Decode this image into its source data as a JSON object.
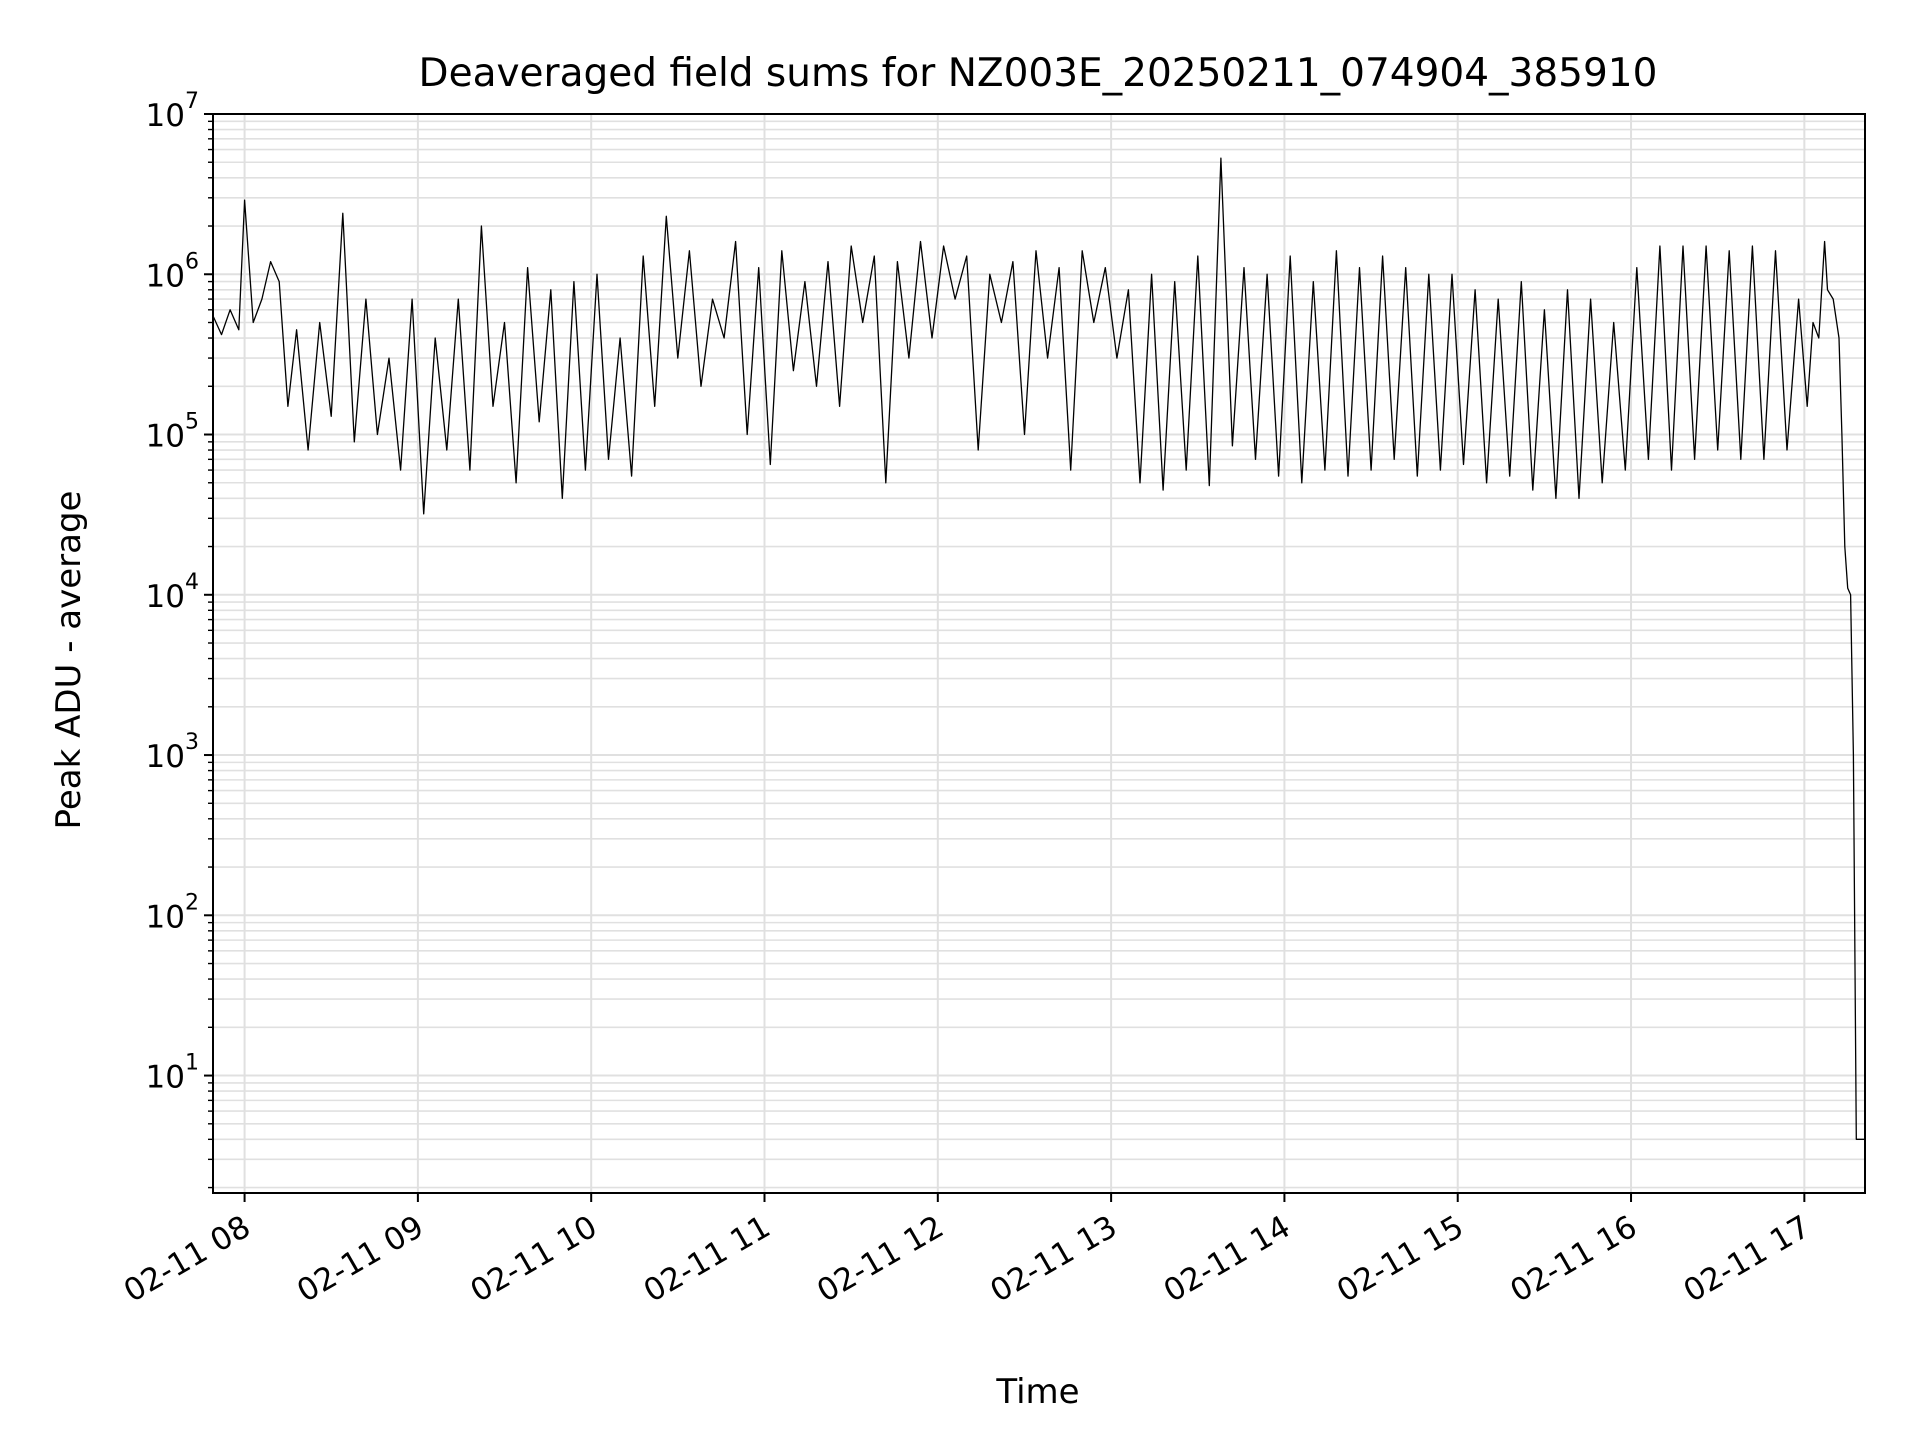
{
  "chart_data": {
    "type": "line",
    "title": "Deaveraged field sums for NZ003E_20250211_074904_385910",
    "xlabel": "Time",
    "ylabel": "Peak ADU - average",
    "yscale": "log",
    "ylim": [
      1.85,
      10000000
    ],
    "xlim": [
      "2025-02-11T07:49:04",
      "2025-02-11T17:21:00"
    ],
    "x_ticks": [
      {
        "label": "02-11 08",
        "t": "2025-02-11T08:00:00"
      },
      {
        "label": "02-11 09",
        "t": "2025-02-11T09:00:00"
      },
      {
        "label": "02-11 10",
        "t": "2025-02-11T10:00:00"
      },
      {
        "label": "02-11 11",
        "t": "2025-02-11T11:00:00"
      },
      {
        "label": "02-11 12",
        "t": "2025-02-11T12:00:00"
      },
      {
        "label": "02-11 13",
        "t": "2025-02-11T13:00:00"
      },
      {
        "label": "02-11 14",
        "t": "2025-02-11T14:00:00"
      },
      {
        "label": "02-11 15",
        "t": "2025-02-11T15:00:00"
      },
      {
        "label": "02-11 16",
        "t": "2025-02-11T16:00:00"
      },
      {
        "label": "02-11 17",
        "t": "2025-02-11T17:00:00"
      }
    ],
    "y_ticks": [
      {
        "base": "10",
        "exp": "1",
        "value": 10
      },
      {
        "base": "10",
        "exp": "2",
        "value": 100
      },
      {
        "base": "10",
        "exp": "3",
        "value": 1000
      },
      {
        "base": "10",
        "exp": "4",
        "value": 10000
      },
      {
        "base": "10",
        "exp": "5",
        "value": 100000
      },
      {
        "base": "10",
        "exp": "6",
        "value": 1000000
      },
      {
        "base": "10",
        "exp": "7",
        "value": 10000000
      }
    ],
    "grid": true,
    "line_color": "#000000",
    "grid_color": "#e0e0e0",
    "series": [
      {
        "x": [
          "2025-02-11T07:49:04",
          "2025-02-11T07:52:00",
          "2025-02-11T07:55:00",
          "2025-02-11T07:58:00",
          "2025-02-11T08:00:00",
          "2025-02-11T08:03:00",
          "2025-02-11T08:06:00",
          "2025-02-11T08:09:00",
          "2025-02-11T08:12:00",
          "2025-02-11T08:15:00",
          "2025-02-11T08:18:00",
          "2025-02-11T08:22:00",
          "2025-02-11T08:26:00",
          "2025-02-11T08:30:00",
          "2025-02-11T08:34:00",
          "2025-02-11T08:38:00",
          "2025-02-11T08:42:00",
          "2025-02-11T08:46:00",
          "2025-02-11T08:50:00",
          "2025-02-11T08:54:00",
          "2025-02-11T08:58:00",
          "2025-02-11T09:02:00",
          "2025-02-11T09:06:00",
          "2025-02-11T09:10:00",
          "2025-02-11T09:14:00",
          "2025-02-11T09:18:00",
          "2025-02-11T09:22:00",
          "2025-02-11T09:26:00",
          "2025-02-11T09:30:00",
          "2025-02-11T09:34:00",
          "2025-02-11T09:38:00",
          "2025-02-11T09:42:00",
          "2025-02-11T09:46:00",
          "2025-02-11T09:50:00",
          "2025-02-11T09:54:00",
          "2025-02-11T09:58:00",
          "2025-02-11T10:02:00",
          "2025-02-11T10:06:00",
          "2025-02-11T10:10:00",
          "2025-02-11T10:14:00",
          "2025-02-11T10:18:00",
          "2025-02-11T10:22:00",
          "2025-02-11T10:26:00",
          "2025-02-11T10:30:00",
          "2025-02-11T10:34:00",
          "2025-02-11T10:38:00",
          "2025-02-11T10:42:00",
          "2025-02-11T10:46:00",
          "2025-02-11T10:50:00",
          "2025-02-11T10:54:00",
          "2025-02-11T10:58:00",
          "2025-02-11T11:02:00",
          "2025-02-11T11:06:00",
          "2025-02-11T11:10:00",
          "2025-02-11T11:14:00",
          "2025-02-11T11:18:00",
          "2025-02-11T11:22:00",
          "2025-02-11T11:26:00",
          "2025-02-11T11:30:00",
          "2025-02-11T11:34:00",
          "2025-02-11T11:38:00",
          "2025-02-11T11:42:00",
          "2025-02-11T11:46:00",
          "2025-02-11T11:50:00",
          "2025-02-11T11:54:00",
          "2025-02-11T11:58:00",
          "2025-02-11T12:02:00",
          "2025-02-11T12:06:00",
          "2025-02-11T12:10:00",
          "2025-02-11T12:14:00",
          "2025-02-11T12:18:00",
          "2025-02-11T12:22:00",
          "2025-02-11T12:26:00",
          "2025-02-11T12:30:00",
          "2025-02-11T12:34:00",
          "2025-02-11T12:38:00",
          "2025-02-11T12:42:00",
          "2025-02-11T12:46:00",
          "2025-02-11T12:50:00",
          "2025-02-11T12:54:00",
          "2025-02-11T12:58:00",
          "2025-02-11T13:02:00",
          "2025-02-11T13:06:00",
          "2025-02-11T13:10:00",
          "2025-02-11T13:14:00",
          "2025-02-11T13:18:00",
          "2025-02-11T13:22:00",
          "2025-02-11T13:26:00",
          "2025-02-11T13:30:00",
          "2025-02-11T13:34:00",
          "2025-02-11T13:38:00",
          "2025-02-11T13:42:00",
          "2025-02-11T13:46:00",
          "2025-02-11T13:50:00",
          "2025-02-11T13:54:00",
          "2025-02-11T13:58:00",
          "2025-02-11T14:02:00",
          "2025-02-11T14:06:00",
          "2025-02-11T14:10:00",
          "2025-02-11T14:14:00",
          "2025-02-11T14:18:00",
          "2025-02-11T14:22:00",
          "2025-02-11T14:26:00",
          "2025-02-11T14:30:00",
          "2025-02-11T14:34:00",
          "2025-02-11T14:38:00",
          "2025-02-11T14:42:00",
          "2025-02-11T14:46:00",
          "2025-02-11T14:50:00",
          "2025-02-11T14:54:00",
          "2025-02-11T14:58:00",
          "2025-02-11T15:02:00",
          "2025-02-11T15:06:00",
          "2025-02-11T15:10:00",
          "2025-02-11T15:14:00",
          "2025-02-11T15:18:00",
          "2025-02-11T15:22:00",
          "2025-02-11T15:26:00",
          "2025-02-11T15:30:00",
          "2025-02-11T15:34:00",
          "2025-02-11T15:38:00",
          "2025-02-11T15:42:00",
          "2025-02-11T15:46:00",
          "2025-02-11T15:50:00",
          "2025-02-11T15:54:00",
          "2025-02-11T15:58:00",
          "2025-02-11T16:02:00",
          "2025-02-11T16:06:00",
          "2025-02-11T16:10:00",
          "2025-02-11T16:14:00",
          "2025-02-11T16:18:00",
          "2025-02-11T16:22:00",
          "2025-02-11T16:26:00",
          "2025-02-11T16:30:00",
          "2025-02-11T16:34:00",
          "2025-02-11T16:38:00",
          "2025-02-11T16:42:00",
          "2025-02-11T16:46:00",
          "2025-02-11T16:50:00",
          "2025-02-11T16:54:00",
          "2025-02-11T16:58:00",
          "2025-02-11T17:01:00",
          "2025-02-11T17:03:00",
          "2025-02-11T17:05:00",
          "2025-02-11T17:07:00",
          "2025-02-11T17:08:00",
          "2025-02-11T17:10:00",
          "2025-02-11T17:12:00",
          "2025-02-11T17:13:00",
          "2025-02-11T17:14:00",
          "2025-02-11T17:15:00",
          "2025-02-11T17:16:00",
          "2025-02-11T17:17:00",
          "2025-02-11T17:18:00",
          "2025-02-11T17:19:00",
          "2025-02-11T17:20:00",
          "2025-02-11T17:21:00"
        ],
        "y": [
          550000,
          420000,
          600000,
          450000,
          2900000,
          500000,
          700000,
          1200000,
          900000,
          150000,
          450000,
          80000,
          500000,
          130000,
          2400000,
          90000,
          700000,
          100000,
          300000,
          60000,
          700000,
          32000,
          400000,
          80000,
          700000,
          60000,
          2000000,
          150000,
          500000,
          50000,
          1100000,
          120000,
          800000,
          40000,
          900000,
          60000,
          1000000,
          70000,
          400000,
          55000,
          1300000,
          150000,
          2300000,
          300000,
          1400000,
          200000,
          700000,
          400000,
          1600000,
          100000,
          1100000,
          65000,
          1400000,
          250000,
          900000,
          200000,
          1200000,
          150000,
          1500000,
          500000,
          1300000,
          50000,
          1200000,
          300000,
          1600000,
          400000,
          1500000,
          700000,
          1300000,
          80000,
          1000000,
          500000,
          1200000,
          100000,
          1400000,
          300000,
          1100000,
          60000,
          1400000,
          500000,
          1100000,
          300000,
          800000,
          50000,
          1000000,
          45000,
          900000,
          60000,
          1300000,
          48000,
          5300000,
          85000,
          1100000,
          70000,
          1000000,
          55000,
          1300000,
          50000,
          900000,
          60000,
          1400000,
          55000,
          1100000,
          60000,
          1300000,
          70000,
          1100000,
          55000,
          1000000,
          60000,
          1000000,
          65000,
          800000,
          50000,
          700000,
          55000,
          900000,
          45000,
          600000,
          40000,
          800000,
          40000,
          700000,
          50000,
          500000,
          60000,
          1100000,
          70000,
          1500000,
          60000,
          1500000,
          70000,
          1500000,
          80000,
          1400000,
          70000,
          1500000,
          70000,
          1400000,
          80000,
          700000,
          150000,
          500000,
          400000,
          1600000,
          800000,
          700000,
          400000,
          100000,
          20000,
          11000,
          10000,
          1000,
          4,
          4,
          4,
          4
        ]
      }
    ]
  }
}
